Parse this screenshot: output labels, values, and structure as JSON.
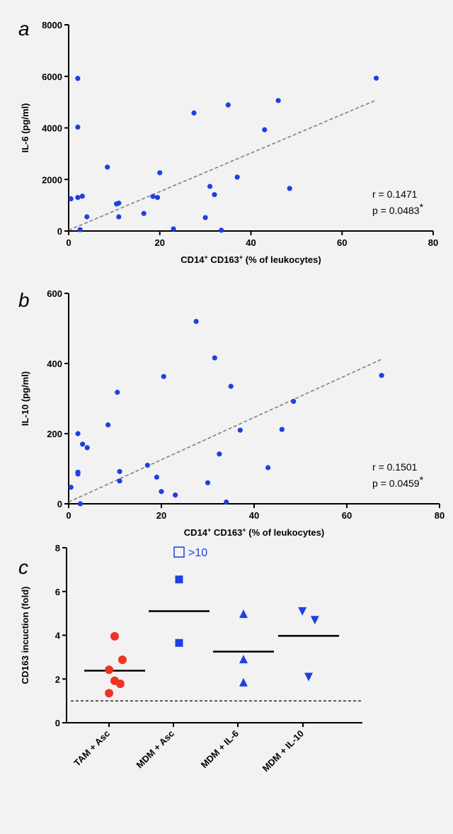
{
  "chart_data": [
    {
      "panel": "a",
      "type": "scatter",
      "xlabel_parts": [
        "CD14",
        "+",
        " CD163",
        "+",
        " (% of leukocytes)"
      ],
      "ylabel": "IL-6 (pg/ml)",
      "xlim": [
        0,
        80
      ],
      "ylim": [
        0,
        8000
      ],
      "xticks": [
        0,
        20,
        40,
        60,
        80
      ],
      "yticks": [
        0,
        2000,
        4000,
        6000,
        8000
      ],
      "color": "#1f3fe0",
      "points": [
        [
          0.5,
          1250
        ],
        [
          2,
          5920
        ],
        [
          2,
          4030
        ],
        [
          2,
          1300
        ],
        [
          2.5,
          50
        ],
        [
          3,
          1350
        ],
        [
          4,
          550
        ],
        [
          8.5,
          2480
        ],
        [
          10.5,
          1050
        ],
        [
          11,
          1080
        ],
        [
          11,
          550
        ],
        [
          16.5,
          680
        ],
        [
          18.5,
          1340
        ],
        [
          19.5,
          1300
        ],
        [
          20,
          2260
        ],
        [
          23,
          80
        ],
        [
          27.5,
          4580
        ],
        [
          30,
          520
        ],
        [
          31,
          1730
        ],
        [
          32,
          1410
        ],
        [
          33.5,
          30
        ],
        [
          35,
          4890
        ],
        [
          37,
          2090
        ],
        [
          43,
          3930
        ],
        [
          46,
          5060
        ],
        [
          48.5,
          1650
        ],
        [
          67.5,
          5930
        ]
      ],
      "trendline": {
        "x": [
          0,
          67.5
        ],
        "y": [
          30,
          5080
        ]
      },
      "stats": {
        "r": "r = 0.1471",
        "p": "p = 0.0483",
        "star": "*"
      }
    },
    {
      "panel": "b",
      "type": "scatter",
      "xlabel_parts": [
        "CD14",
        "+",
        " CD163",
        "+",
        " (% of leukocytes)"
      ],
      "ylabel": "IL-10 (pg/ml)",
      "xlim": [
        0,
        80
      ],
      "ylim": [
        0,
        600
      ],
      "xticks": [
        0,
        20,
        40,
        60,
        80
      ],
      "yticks": [
        0,
        200,
        400,
        600
      ],
      "color": "#1f3fe0",
      "points": [
        [
          0.5,
          47
        ],
        [
          2,
          200
        ],
        [
          2,
          90
        ],
        [
          2,
          85
        ],
        [
          2.5,
          0
        ],
        [
          3,
          170
        ],
        [
          4,
          160
        ],
        [
          8.5,
          225
        ],
        [
          10.5,
          318
        ],
        [
          11,
          65
        ],
        [
          11,
          92
        ],
        [
          17,
          110
        ],
        [
          19,
          76
        ],
        [
          20,
          35
        ],
        [
          20.5,
          363
        ],
        [
          23,
          25
        ],
        [
          27.5,
          520
        ],
        [
          30,
          60
        ],
        [
          31.5,
          416
        ],
        [
          32.5,
          142
        ],
        [
          34,
          5
        ],
        [
          35,
          335
        ],
        [
          37,
          210
        ],
        [
          43,
          103
        ],
        [
          46,
          212
        ],
        [
          48.5,
          292
        ],
        [
          67.5,
          366
        ]
      ],
      "trendline": {
        "x": [
          0,
          67.5
        ],
        "y": [
          5,
          412
        ]
      },
      "stats": {
        "r": "r = 0.1501",
        "p": "p = 0.0459",
        "star": "*"
      }
    },
    {
      "panel": "c",
      "type": "scatter",
      "ylabel": "CD163 incuction (fold)",
      "categories": [
        "TAM + Asc",
        "MDM + Asc",
        "MDM + IL-6",
        "MDM + IL-10"
      ],
      "ylim": [
        0,
        8
      ],
      "yticks": [
        0,
        2,
        4,
        6,
        8
      ],
      "baseline": 1,
      "series": [
        {
          "category": "TAM + Asc",
          "marker": "circle",
          "color": "#ee3322",
          "mean": 2.38,
          "points": [
            [
              0,
              3.95
            ],
            [
              0.25,
              2.88
            ],
            [
              -0.18,
              2.42
            ],
            [
              0,
              1.92
            ],
            [
              0.18,
              1.78
            ],
            [
              -0.18,
              1.35
            ]
          ]
        },
        {
          "category": "MDM + Asc",
          "marker": "square",
          "color": "#1f3fe0",
          "mean": 5.1,
          "points": [
            [
              0,
              6.55
            ],
            [
              0,
              3.65
            ]
          ],
          "offscale": {
            "y": 7.8,
            "label": ">10"
          }
        },
        {
          "category": "MDM + IL-6",
          "marker": "triangle-up",
          "color": "#1f3fe0",
          "mean": 3.25,
          "points": [
            [
              0,
              4.95
            ],
            [
              0,
              2.88
            ],
            [
              0,
              1.82
            ]
          ]
        },
        {
          "category": "MDM + IL-10",
          "marker": "triangle-down",
          "color": "#1f3fe0",
          "mean": 3.97,
          "points": [
            [
              -0.2,
              5.12
            ],
            [
              0.2,
              4.72
            ],
            [
              0,
              2.12
            ]
          ]
        }
      ]
    }
  ]
}
